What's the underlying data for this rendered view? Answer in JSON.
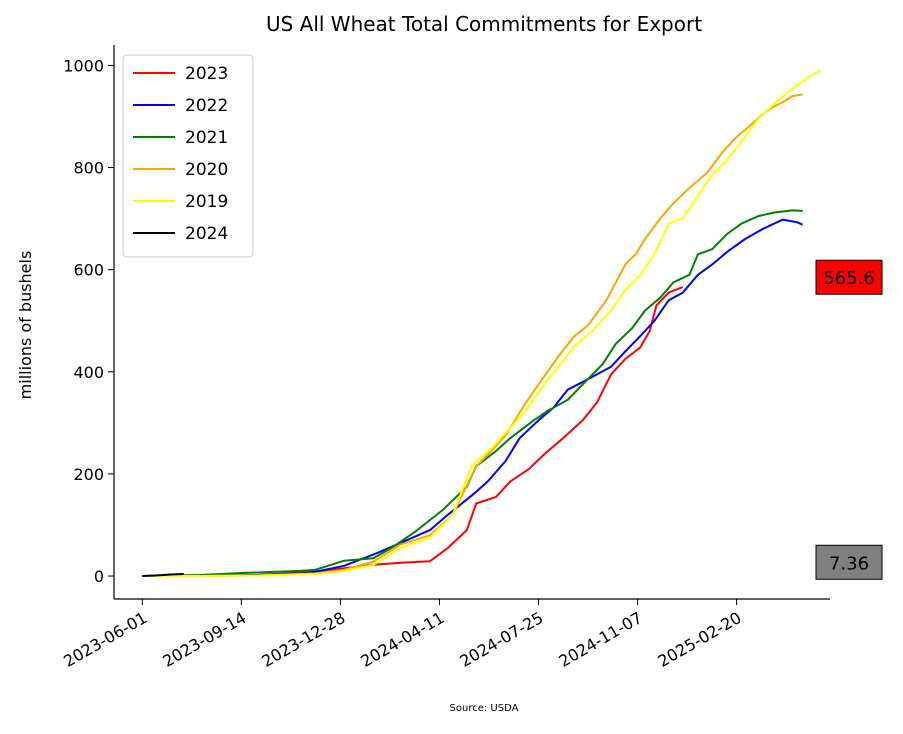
{
  "chart_data": {
    "type": "line",
    "title": "US All Wheat Total Commitments for Export",
    "xlabel": "",
    "ylabel": "millions of bushels",
    "source": "Source: USDA",
    "x_ticks": [
      "2023-06-01",
      "2023-09-14",
      "2023-12-28",
      "2024-04-11",
      "2024-07-25",
      "2024-11-07",
      "2025-02-20"
    ],
    "xlim": [
      "2023-05-02",
      "2025-05-30"
    ],
    "y_ticks": [
      0,
      200,
      400,
      600,
      800,
      1000
    ],
    "ylim": [
      -45,
      1040
    ],
    "grid": false,
    "legend_position": "top-left",
    "series": [
      {
        "name": "2023",
        "color": "#ff0000",
        "points": [
          [
            "2023-06-01",
            0
          ],
          [
            "2023-08-01",
            0
          ],
          [
            "2023-10-01",
            2
          ],
          [
            "2023-12-01",
            8
          ],
          [
            "2024-01-15",
            18
          ],
          [
            "2024-02-01",
            22
          ],
          [
            "2024-03-01",
            26
          ],
          [
            "2024-04-01",
            29
          ],
          [
            "2024-04-20",
            55
          ],
          [
            "2024-05-10",
            90
          ],
          [
            "2024-05-20",
            142
          ],
          [
            "2024-06-10",
            155
          ],
          [
            "2024-06-25",
            185
          ],
          [
            "2024-07-15",
            210
          ],
          [
            "2024-08-01",
            240
          ],
          [
            "2024-08-20",
            270
          ],
          [
            "2024-09-10",
            305
          ],
          [
            "2024-09-25",
            340
          ],
          [
            "2024-10-10",
            395
          ],
          [
            "2024-10-25",
            425
          ],
          [
            "2024-11-10",
            448
          ],
          [
            "2024-11-20",
            480
          ],
          [
            "2024-11-27",
            530
          ],
          [
            "2024-12-10",
            555
          ],
          [
            "2024-12-25",
            566
          ]
        ]
      },
      {
        "name": "2022",
        "color": "#0000ff",
        "points": [
          [
            "2023-06-01",
            0
          ],
          [
            "2023-08-01",
            0
          ],
          [
            "2023-10-01",
            2
          ],
          [
            "2023-11-15",
            5
          ],
          [
            "2023-12-01",
            8
          ],
          [
            "2024-01-01",
            20
          ],
          [
            "2024-02-05",
            45
          ],
          [
            "2024-03-01",
            65
          ],
          [
            "2024-04-01",
            90
          ],
          [
            "2024-04-20",
            120
          ],
          [
            "2024-05-20",
            165
          ],
          [
            "2024-06-01",
            185
          ],
          [
            "2024-06-20",
            225
          ],
          [
            "2024-07-05",
            270
          ],
          [
            "2024-07-25",
            305
          ],
          [
            "2024-08-10",
            330
          ],
          [
            "2024-08-25",
            365
          ],
          [
            "2024-09-15",
            385
          ],
          [
            "2024-10-10",
            410
          ],
          [
            "2024-10-25",
            440
          ],
          [
            "2024-11-10",
            470
          ],
          [
            "2024-11-25",
            500
          ],
          [
            "2024-12-10",
            540
          ],
          [
            "2024-12-25",
            555
          ],
          [
            "2025-01-10",
            590
          ],
          [
            "2025-01-25",
            610
          ],
          [
            "2025-02-10",
            635
          ],
          [
            "2025-03-01",
            660
          ],
          [
            "2025-03-20",
            680
          ],
          [
            "2025-04-10",
            698
          ],
          [
            "2025-04-25",
            693
          ],
          [
            "2025-05-01",
            688
          ]
        ]
      },
      {
        "name": "2021",
        "color": "#008000",
        "points": [
          [
            "2023-06-01",
            0
          ],
          [
            "2023-08-01",
            2
          ],
          [
            "2023-09-15",
            6
          ],
          [
            "2023-11-15",
            10
          ],
          [
            "2023-12-01",
            12
          ],
          [
            "2024-01-01",
            30
          ],
          [
            "2024-02-01",
            35
          ],
          [
            "2024-02-20",
            55
          ],
          [
            "2024-03-15",
            85
          ],
          [
            "2024-04-15",
            130
          ],
          [
            "2024-05-10",
            175
          ],
          [
            "2024-05-20",
            215
          ],
          [
            "2024-06-10",
            245
          ],
          [
            "2024-06-25",
            270
          ],
          [
            "2024-07-20",
            305
          ],
          [
            "2024-08-05",
            325
          ],
          [
            "2024-08-25",
            345
          ],
          [
            "2024-09-15",
            385
          ],
          [
            "2024-10-01",
            415
          ],
          [
            "2024-10-15",
            455
          ],
          [
            "2024-11-01",
            485
          ],
          [
            "2024-11-15",
            520
          ],
          [
            "2024-12-01",
            545
          ],
          [
            "2024-12-15",
            575
          ],
          [
            "2025-01-01",
            590
          ],
          [
            "2025-01-10",
            630
          ],
          [
            "2025-01-25",
            640
          ],
          [
            "2025-02-10",
            670
          ],
          [
            "2025-02-25",
            690
          ],
          [
            "2025-03-15",
            705
          ],
          [
            "2025-04-01",
            712
          ],
          [
            "2025-04-20",
            716
          ],
          [
            "2025-05-01",
            715
          ]
        ]
      },
      {
        "name": "2020",
        "color": "#ffa500",
        "points": [
          [
            "2023-06-01",
            0
          ],
          [
            "2023-08-01",
            0
          ],
          [
            "2023-10-01",
            1
          ],
          [
            "2023-12-01",
            5
          ],
          [
            "2024-01-01",
            12
          ],
          [
            "2024-02-01",
            28
          ],
          [
            "2024-03-01",
            62
          ],
          [
            "2024-04-01",
            80
          ],
          [
            "2024-04-25",
            120
          ],
          [
            "2024-05-20",
            215
          ],
          [
            "2024-06-05",
            245
          ],
          [
            "2024-06-20",
            275
          ],
          [
            "2024-07-10",
            335
          ],
          [
            "2024-07-25",
            375
          ],
          [
            "2024-08-15",
            430
          ],
          [
            "2024-09-01",
            470
          ],
          [
            "2024-09-15",
            490
          ],
          [
            "2024-10-05",
            540
          ],
          [
            "2024-10-25",
            610
          ],
          [
            "2024-11-05",
            630
          ],
          [
            "2024-11-15",
            660
          ],
          [
            "2024-12-01",
            700
          ],
          [
            "2024-12-15",
            730
          ],
          [
            "2025-01-01",
            760
          ],
          [
            "2025-01-20",
            790
          ],
          [
            "2025-02-05",
            830
          ],
          [
            "2025-02-20",
            860
          ],
          [
            "2025-03-05",
            880
          ],
          [
            "2025-03-20",
            905
          ],
          [
            "2025-04-01",
            920
          ],
          [
            "2025-04-10",
            928
          ],
          [
            "2025-04-20",
            940
          ],
          [
            "2025-05-01",
            943
          ]
        ]
      },
      {
        "name": "2019",
        "color": "#ffff00",
        "points": [
          [
            "2023-06-01",
            0
          ],
          [
            "2023-08-01",
            0
          ],
          [
            "2023-10-01",
            1
          ],
          [
            "2023-12-01",
            4
          ],
          [
            "2024-01-01",
            10
          ],
          [
            "2024-02-01",
            22
          ],
          [
            "2024-03-01",
            55
          ],
          [
            "2024-04-01",
            75
          ],
          [
            "2024-04-25",
            120
          ],
          [
            "2024-05-15",
            215
          ],
          [
            "2024-06-05",
            250
          ],
          [
            "2024-06-20",
            280
          ],
          [
            "2024-07-10",
            320
          ],
          [
            "2024-07-25",
            360
          ],
          [
            "2024-08-15",
            410
          ],
          [
            "2024-09-01",
            450
          ],
          [
            "2024-09-20",
            480
          ],
          [
            "2024-10-10",
            520
          ],
          [
            "2024-10-25",
            560
          ],
          [
            "2024-11-10",
            590
          ],
          [
            "2024-11-25",
            630
          ],
          [
            "2024-12-10",
            690
          ],
          [
            "2024-12-25",
            700
          ],
          [
            "2025-01-10",
            745
          ],
          [
            "2025-01-25",
            785
          ],
          [
            "2025-02-10",
            815
          ],
          [
            "2025-02-25",
            850
          ],
          [
            "2025-03-15",
            895
          ],
          [
            "2025-04-01",
            925
          ],
          [
            "2025-04-20",
            955
          ],
          [
            "2025-05-10",
            980
          ],
          [
            "2025-05-20",
            990
          ]
        ]
      },
      {
        "name": "2024",
        "color": "#000000",
        "points": [
          [
            "2023-06-01",
            0
          ],
          [
            "2023-06-15",
            1
          ],
          [
            "2023-07-01",
            3
          ],
          [
            "2023-07-15",
            4
          ]
        ]
      }
    ],
    "annotations": [
      {
        "text": "565.6",
        "value": 565.6,
        "fill": "#ff0000"
      },
      {
        "text": "7.36",
        "value": 7.36,
        "fill": "#808080"
      }
    ]
  }
}
